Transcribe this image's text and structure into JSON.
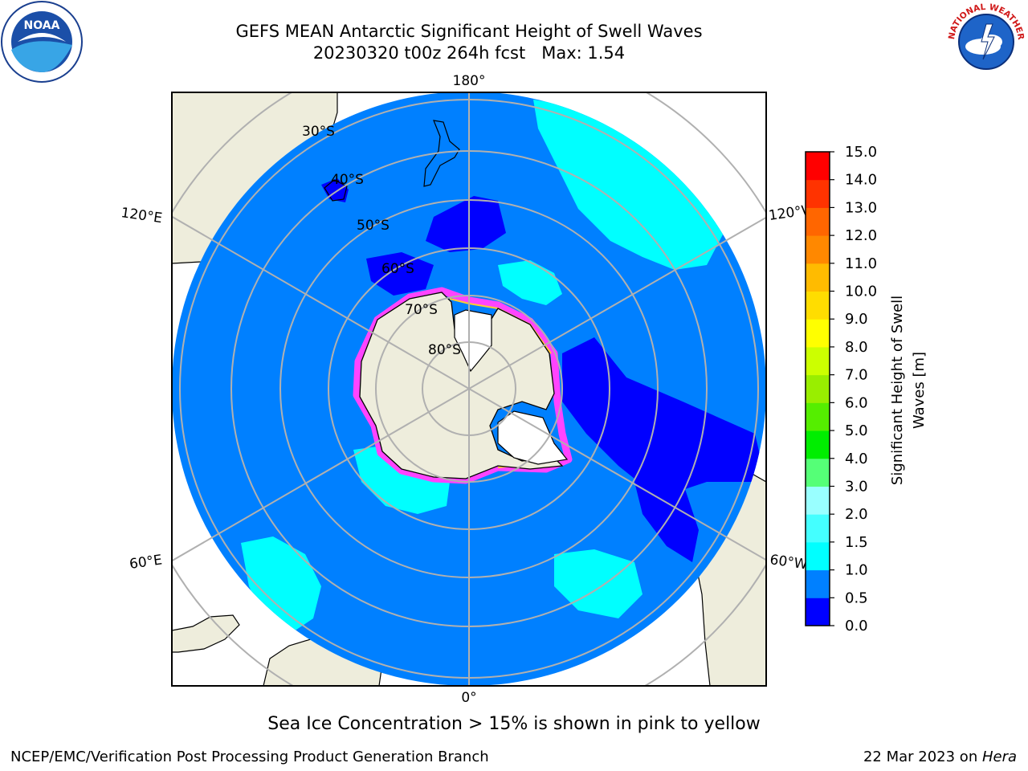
{
  "title": {
    "line1": "GEFS MEAN Antarctic Significant Height of Swell Waves",
    "line2": "20230320 t00z 264h fcst   Max: 1.54"
  },
  "map": {
    "projection": "south-polar-stereographic",
    "longitude_labels": {
      "top": "180°",
      "bottom": "0°",
      "upper_left": "120°E",
      "upper_right": "120°W",
      "lower_left": "60°E",
      "lower_right": "60°W"
    },
    "latitude_labels": [
      "30°S",
      "40°S",
      "50°S",
      "60°S",
      "70°S",
      "80°S"
    ],
    "colors": {
      "land": "#eeeddc",
      "ocean_swell_0_5_to_1": "#0080ff",
      "ocean_swell_1_to_1_5": "#00ffff",
      "ocean_swell_0_to_0_5": "#0000ff",
      "sea_ice": "#ff44ff",
      "grid": "#b0b0b0"
    }
  },
  "colorbar": {
    "label_line1": "Significant Height of Swell",
    "label_line2": "Waves [m]",
    "ticks": [
      "0.0",
      "0.5",
      "1.0",
      "1.5",
      "2.0",
      "3.0",
      "4.0",
      "5.0",
      "6.0",
      "7.0",
      "8.0",
      "9.0",
      "10.0",
      "11.0",
      "12.0",
      "13.0",
      "14.0",
      "15.0"
    ],
    "colors": [
      "#0000ff",
      "#0080ff",
      "#00ffff",
      "#44ffff",
      "#99ffff",
      "#55ff77",
      "#00ee00",
      "#55ee00",
      "#99ee00",
      "#ccff00",
      "#ffff00",
      "#ffdd00",
      "#ffbb00",
      "#ff8800",
      "#ff6600",
      "#ff3300",
      "#ff0000"
    ]
  },
  "caption": "Sea Ice Concentration > 15% is shown in pink to yellow",
  "footer": {
    "left": "NCEP/EMC/Verification Post Processing Product Generation Branch",
    "right_date": "22 Mar 2023 on ",
    "right_host": "Hera"
  },
  "logos": {
    "left_icon": "noaa-logo-icon",
    "right_icon": "nws-logo-icon",
    "noaa_text": "NOAA",
    "nws_text": "NATIONAL WEATHER SERVICE"
  }
}
